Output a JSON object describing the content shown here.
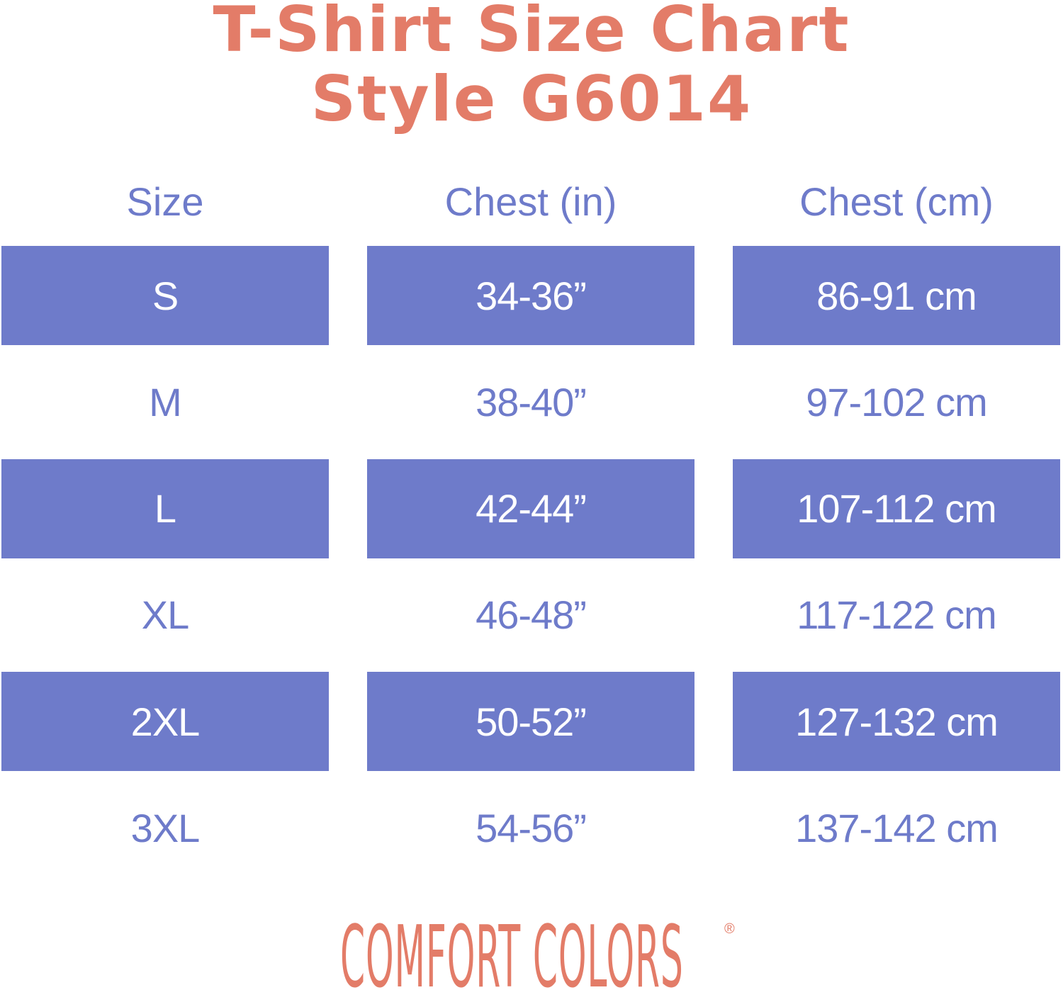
{
  "title": {
    "line1": "T-Shirt Size Chart",
    "line2": "Style G6014"
  },
  "colors": {
    "accent": "#e37c68",
    "band": "#6e7bca",
    "text_on_band": "#ffffff"
  },
  "table": {
    "headers": [
      "Size",
      "Chest (in)",
      "Chest (cm)"
    ],
    "rows": [
      [
        "S",
        "34-36”",
        "86-91 cm"
      ],
      [
        "M",
        "38-40”",
        "97-102 cm"
      ],
      [
        "L",
        "42-44”",
        "107-112 cm"
      ],
      [
        "XL",
        "46-48”",
        "117-122 cm"
      ],
      [
        "2XL",
        "50-52”",
        "127-132 cm"
      ],
      [
        "3XL",
        "54-56”",
        "137-142 cm"
      ]
    ]
  },
  "logo": {
    "text": "COMFORT COLORS",
    "registered": "®"
  }
}
